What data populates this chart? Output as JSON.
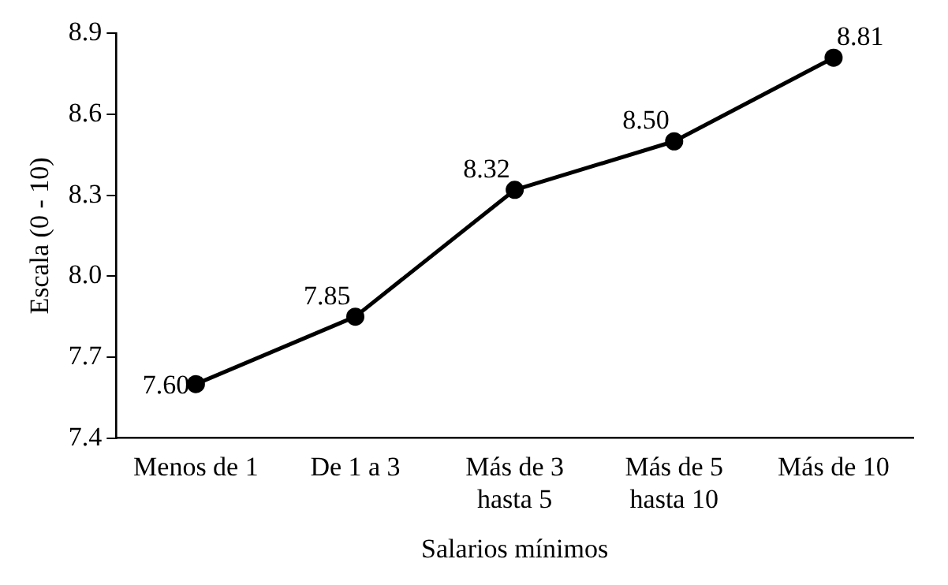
{
  "chart_data": {
    "type": "line",
    "xlabel": "Salarios mínimos",
    "ylabel": "Escala (0 - 10)",
    "categories": [
      "Menos de 1",
      "De 1 a 3",
      "Más de 3 hasta 5",
      "Más de 5 hasta 10",
      "Más de 10"
    ],
    "series": [
      {
        "color": "#000000",
        "values": [
          7.6,
          7.85,
          8.32,
          8.5,
          8.81
        ],
        "value_labels": [
          "7.60",
          "7.85",
          "8.32",
          "8.50",
          "8.81"
        ]
      }
    ],
    "ylim": [
      7.4,
      8.9
    ],
    "yticks": [
      {
        "value": 7.4,
        "label": "7.4"
      },
      {
        "value": 7.7,
        "label": "7.7"
      },
      {
        "value": 8.0,
        "label": "8.0"
      },
      {
        "value": 8.3,
        "label": "8.3"
      },
      {
        "value": 8.6,
        "label": "8.6"
      },
      {
        "value": 8.9,
        "label": "8.9"
      }
    ],
    "grid": false,
    "legend": false,
    "marker": "circle",
    "line_style": "solid"
  }
}
